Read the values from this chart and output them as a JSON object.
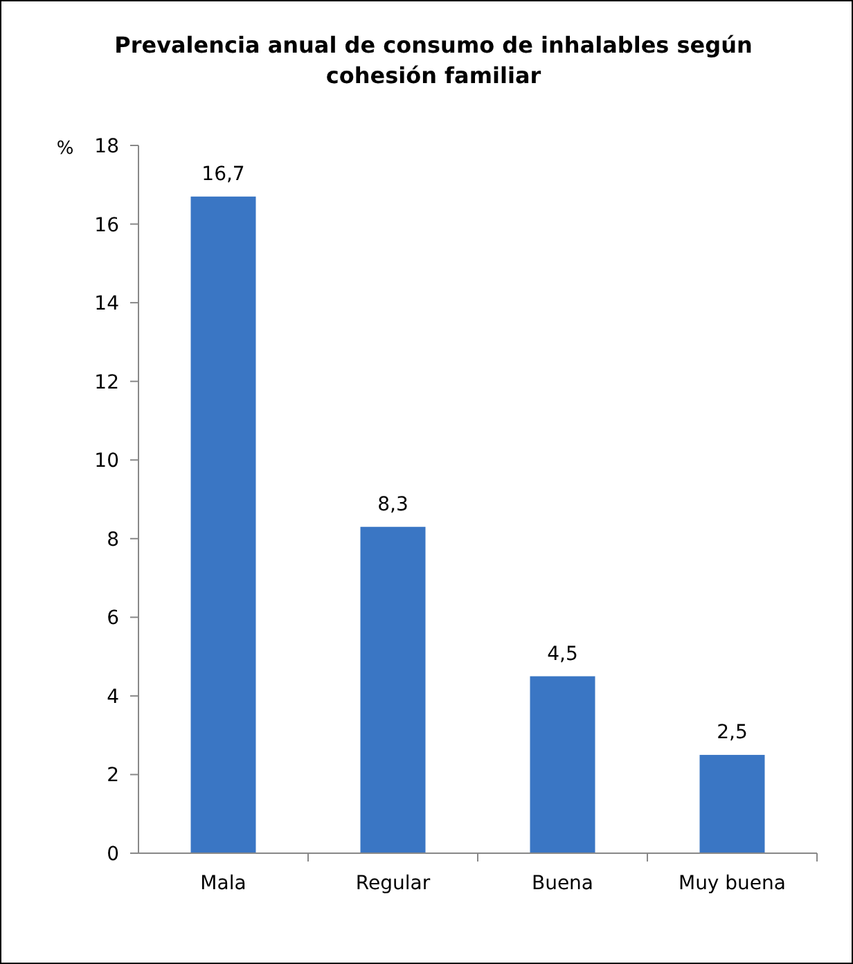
{
  "chart_data": {
    "type": "bar",
    "title": "Prevalencia anual de consumo de inhalables según cohesión familiar",
    "ylabel": "%",
    "categories": [
      "Mala",
      "Regular",
      "Buena",
      "Muy buena"
    ],
    "values": [
      16.7,
      8.3,
      4.5,
      2.5
    ],
    "color": "#3a76c4",
    "value_labels": [
      "16,7",
      "8,3",
      "4,5",
      "2,5"
    ],
    "ylim": [
      0,
      18
    ],
    "yticks": [
      0,
      2,
      4,
      6,
      8,
      10,
      12,
      14,
      16,
      18
    ],
    "grid": false
  }
}
